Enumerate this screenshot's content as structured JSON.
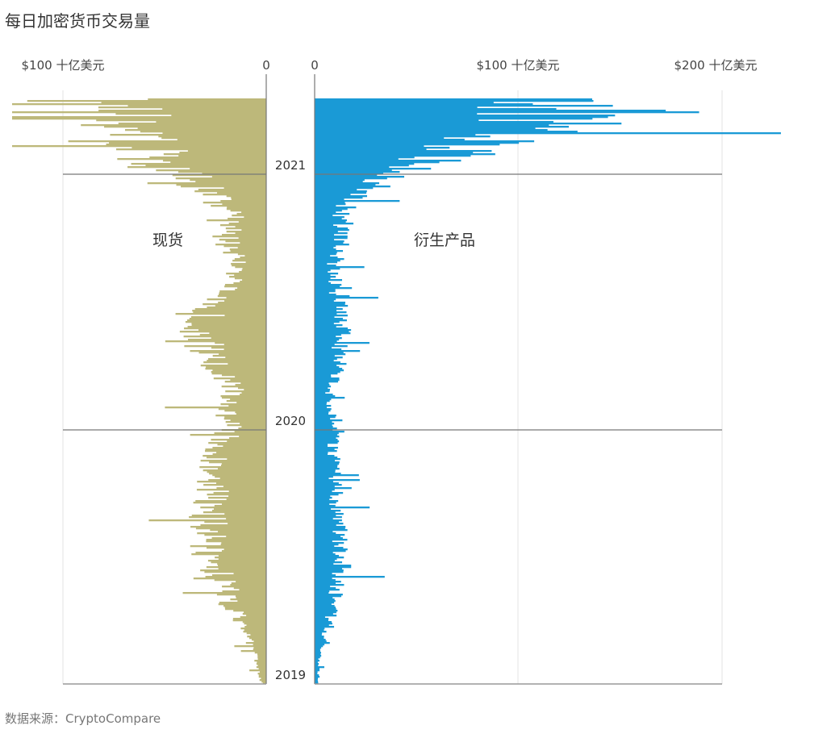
{
  "title": "每日加密货币交易量",
  "source": "数据来源：CryptoCompare",
  "chart_data": {
    "type": "bar",
    "orientation": "horizontal-mirrored",
    "y_axis": "time (2019 bottom to 2021 top)",
    "years": [
      "2021",
      "2020",
      "2019"
    ],
    "colors": {
      "spot": "#bdb87a",
      "derivatives": "#1a9ad6",
      "grid": "#e3e3e3",
      "axis": "#777777"
    },
    "panels": [
      {
        "label": "现货",
        "direction": "left",
        "xlim": [
          0,
          100
        ],
        "ticks": [
          {
            "value": 100,
            "label": "$100 十亿美元"
          },
          {
            "value": 0,
            "label": "0"
          }
        ],
        "envelope": [
          {
            "t": 0,
            "v": 3
          },
          {
            "t": 0.05,
            "v": 6
          },
          {
            "t": 0.1,
            "v": 14
          },
          {
            "t": 0.15,
            "v": 22
          },
          {
            "t": 0.2,
            "v": 30
          },
          {
            "t": 0.25,
            "v": 35
          },
          {
            "t": 0.3,
            "v": 32
          },
          {
            "t": 0.35,
            "v": 30
          },
          {
            "t": 0.4,
            "v": 28
          },
          {
            "t": 0.45,
            "v": 20
          },
          {
            "t": 0.48,
            "v": 24
          },
          {
            "t": 0.5,
            "v": 18
          },
          {
            "t": 0.55,
            "v": 33
          },
          {
            "t": 0.6,
            "v": 40
          },
          {
            "t": 0.64,
            "v": 34
          },
          {
            "t": 0.68,
            "v": 22
          },
          {
            "t": 0.72,
            "v": 16
          },
          {
            "t": 0.76,
            "v": 24
          },
          {
            "t": 0.8,
            "v": 18
          },
          {
            "t": 0.83,
            "v": 30
          },
          {
            "t": 0.86,
            "v": 42
          },
          {
            "t": 0.88,
            "v": 58
          },
          {
            "t": 0.92,
            "v": 72
          },
          {
            "t": 0.96,
            "v": 82
          },
          {
            "t": 1.0,
            "v": 88
          }
        ]
      },
      {
        "label": "衍生产品",
        "direction": "right",
        "xlim": [
          0,
          200
        ],
        "ticks": [
          {
            "value": 0,
            "label": "0"
          },
          {
            "value": 100,
            "label": "$100 十亿美元"
          },
          {
            "value": 200,
            "label": "$200 十亿美元"
          }
        ],
        "envelope": [
          {
            "t": 0,
            "v": 2
          },
          {
            "t": 0.05,
            "v": 3
          },
          {
            "t": 0.1,
            "v": 8
          },
          {
            "t": 0.15,
            "v": 12
          },
          {
            "t": 0.2,
            "v": 16
          },
          {
            "t": 0.25,
            "v": 15
          },
          {
            "t": 0.3,
            "v": 13
          },
          {
            "t": 0.35,
            "v": 12
          },
          {
            "t": 0.4,
            "v": 11
          },
          {
            "t": 0.45,
            "v": 10
          },
          {
            "t": 0.5,
            "v": 9
          },
          {
            "t": 0.55,
            "v": 14
          },
          {
            "t": 0.6,
            "v": 16
          },
          {
            "t": 0.64,
            "v": 15
          },
          {
            "t": 0.68,
            "v": 12
          },
          {
            "t": 0.72,
            "v": 11
          },
          {
            "t": 0.76,
            "v": 16
          },
          {
            "t": 0.8,
            "v": 14
          },
          {
            "t": 0.83,
            "v": 22
          },
          {
            "t": 0.86,
            "v": 36
          },
          {
            "t": 0.88,
            "v": 58
          },
          {
            "t": 0.92,
            "v": 90
          },
          {
            "t": 0.96,
            "v": 120
          },
          {
            "t": 1.0,
            "v": 150
          }
        ]
      }
    ]
  }
}
